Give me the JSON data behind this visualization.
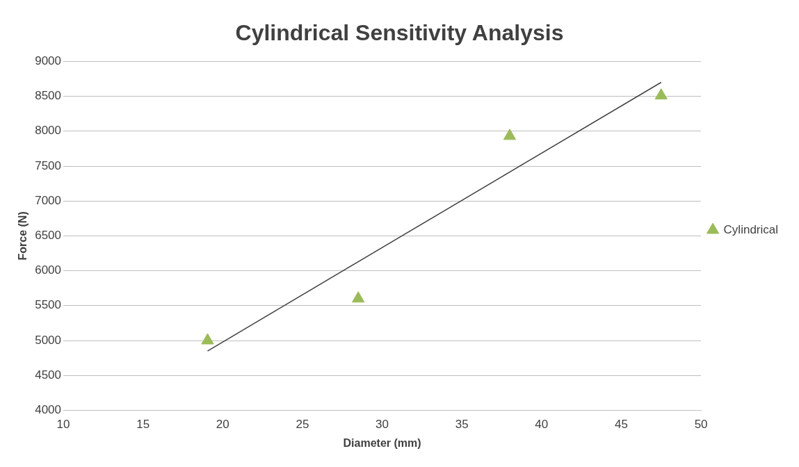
{
  "chart_data": {
    "type": "scatter",
    "title": "Cylindrical Sensitivity Analysis",
    "xlabel": "Diameter (mm)",
    "ylabel": "Force (N)",
    "x": [
      19.05,
      28.5,
      38,
      47.5
    ],
    "series": [
      {
        "name": "Cylindrical",
        "color": "#9bbb59",
        "marker": "triangle",
        "values": [
          5000,
          5600,
          7930,
          8510
        ]
      },
      {
        "type": "line",
        "color": "#404040",
        "marker": "none",
        "x": [
          19.05,
          47.5
        ],
        "values": [
          4850,
          8700
        ]
      }
    ],
    "xlim": [
      10,
      50
    ],
    "xticks": [
      10,
      15,
      20,
      25,
      30,
      35,
      40,
      45,
      50
    ],
    "ylim": [
      4000,
      9000
    ],
    "yticks": [
      4000,
      4500,
      5000,
      5500,
      6000,
      6500,
      7000,
      7500,
      8000,
      8500,
      9000
    ],
    "grid": "y",
    "legend": "right"
  }
}
